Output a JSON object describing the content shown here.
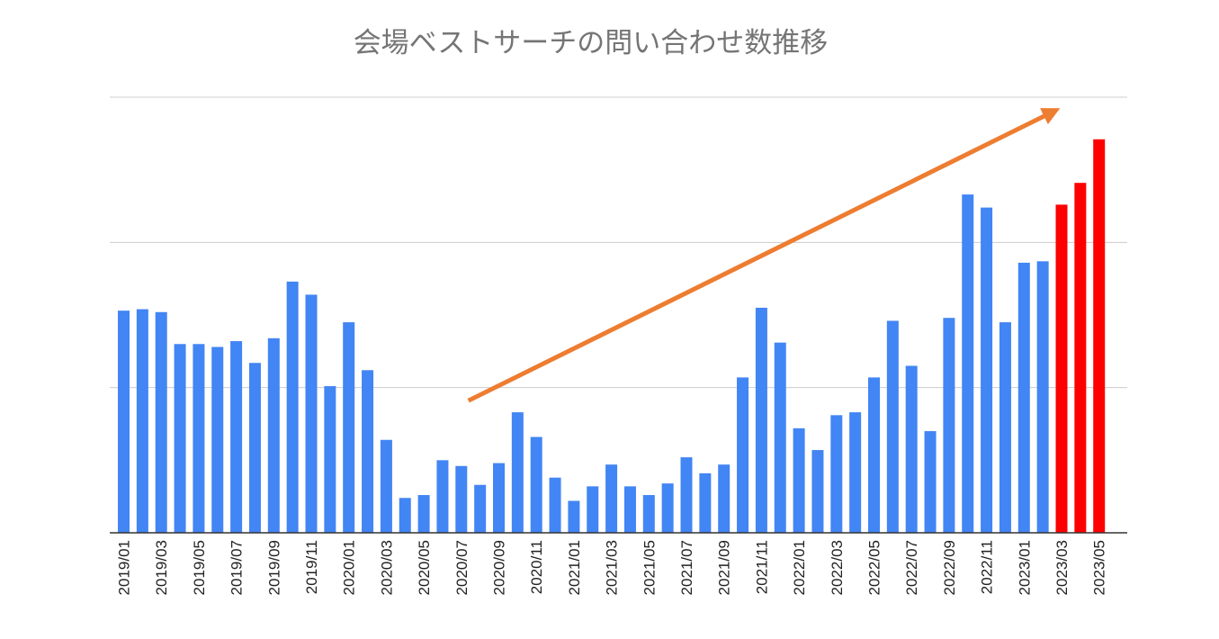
{
  "title": "会場ベストサーチの問い合わせ数推移",
  "chart_data": {
    "type": "bar",
    "title": "会場ベストサーチの問い合わせ数推移",
    "xlabel": "",
    "ylabel": "",
    "ylim": [
      0,
      300
    ],
    "grid": true,
    "legend": "none",
    "colors": {
      "default": "#4285F4",
      "highlight": "#FF0000",
      "arrow": "#ED7D31",
      "grid": "#CCCCCC",
      "axis": "#333333"
    },
    "categories": [
      "2019/01",
      "2019/02",
      "2019/03",
      "2019/04",
      "2019/05",
      "2019/06",
      "2019/07",
      "2019/08",
      "2019/09",
      "2019/10",
      "2019/11",
      "2019/12",
      "2020/01",
      "2020/02",
      "2020/03",
      "2020/04",
      "2020/05",
      "2020/06",
      "2020/07",
      "2020/08",
      "2020/09",
      "2020/10",
      "2020/11",
      "2020/12",
      "2021/01",
      "2021/02",
      "2021/03",
      "2021/04",
      "2021/05",
      "2021/06",
      "2021/07",
      "2021/08",
      "2021/09",
      "2021/10",
      "2021/11",
      "2021/12",
      "2022/01",
      "2022/02",
      "2022/03",
      "2022/04",
      "2022/05",
      "2022/06",
      "2022/07",
      "2022/08",
      "2022/09",
      "2022/10",
      "2022/11",
      "2022/12",
      "2023/01",
      "2023/02",
      "2023/03",
      "2023/04",
      "2023/05"
    ],
    "tick_labels": [
      "2019/01",
      "2019/03",
      "2019/05",
      "2019/07",
      "2019/09",
      "2019/11",
      "2020/01",
      "2020/03",
      "2020/05",
      "2020/07",
      "2020/09",
      "2020/11",
      "2021/01",
      "2021/03",
      "2021/05",
      "2021/07",
      "2021/09",
      "2021/11",
      "2022/01",
      "2022/03",
      "2022/05",
      "2022/07",
      "2022/09",
      "2022/11",
      "2023/01",
      "2023/03",
      "2023/05"
    ],
    "values": [
      153,
      154,
      152,
      130,
      130,
      128,
      132,
      117,
      134,
      173,
      164,
      101,
      145,
      112,
      64,
      24,
      26,
      50,
      46,
      33,
      48,
      83,
      66,
      38,
      22,
      32,
      47,
      32,
      26,
      34,
      52,
      41,
      47,
      107,
      155,
      131,
      72,
      57,
      81,
      83,
      107,
      146,
      115,
      70,
      148,
      233,
      224,
      145,
      186,
      187,
      226,
      241,
      271
    ],
    "highlight_categories": [
      "2023/03",
      "2023/04",
      "2023/05"
    ],
    "annotations": [
      {
        "type": "arrow",
        "from": [
          "2020/08",
          91
        ],
        "to": [
          "2023/03",
          288
        ],
        "color": "#ED7D31"
      }
    ]
  }
}
